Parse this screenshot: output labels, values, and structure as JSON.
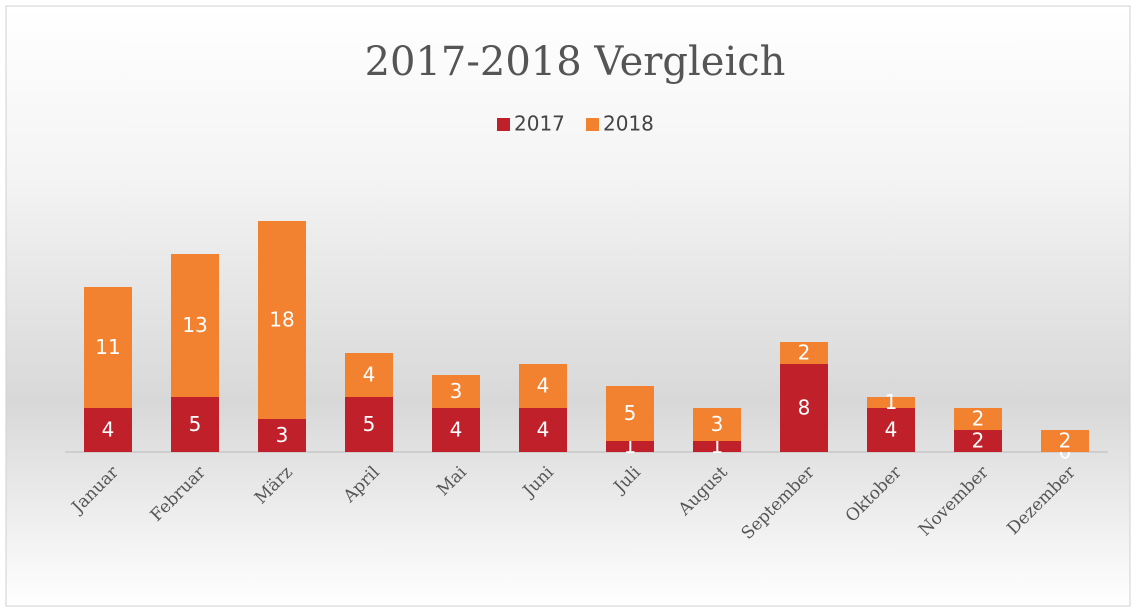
{
  "chart_data": {
    "type": "stacked_bar",
    "title": "2017-2018 Vergleich",
    "categories": [
      "Januar",
      "Februar",
      "März",
      "April",
      "Mai",
      "Juni",
      "Juli",
      "August",
      "September",
      "Oktober",
      "November",
      "Dezember"
    ],
    "series": [
      {
        "name": "2017",
        "color": "#c0202a",
        "values": [
          4,
          5,
          3,
          5,
          4,
          4,
          1,
          1,
          8,
          4,
          2,
          0
        ]
      },
      {
        "name": "2018",
        "color": "#f28130",
        "values": [
          11,
          13,
          18,
          4,
          3,
          4,
          5,
          3,
          2,
          1,
          2,
          2
        ]
      }
    ],
    "legend": "top"
  }
}
